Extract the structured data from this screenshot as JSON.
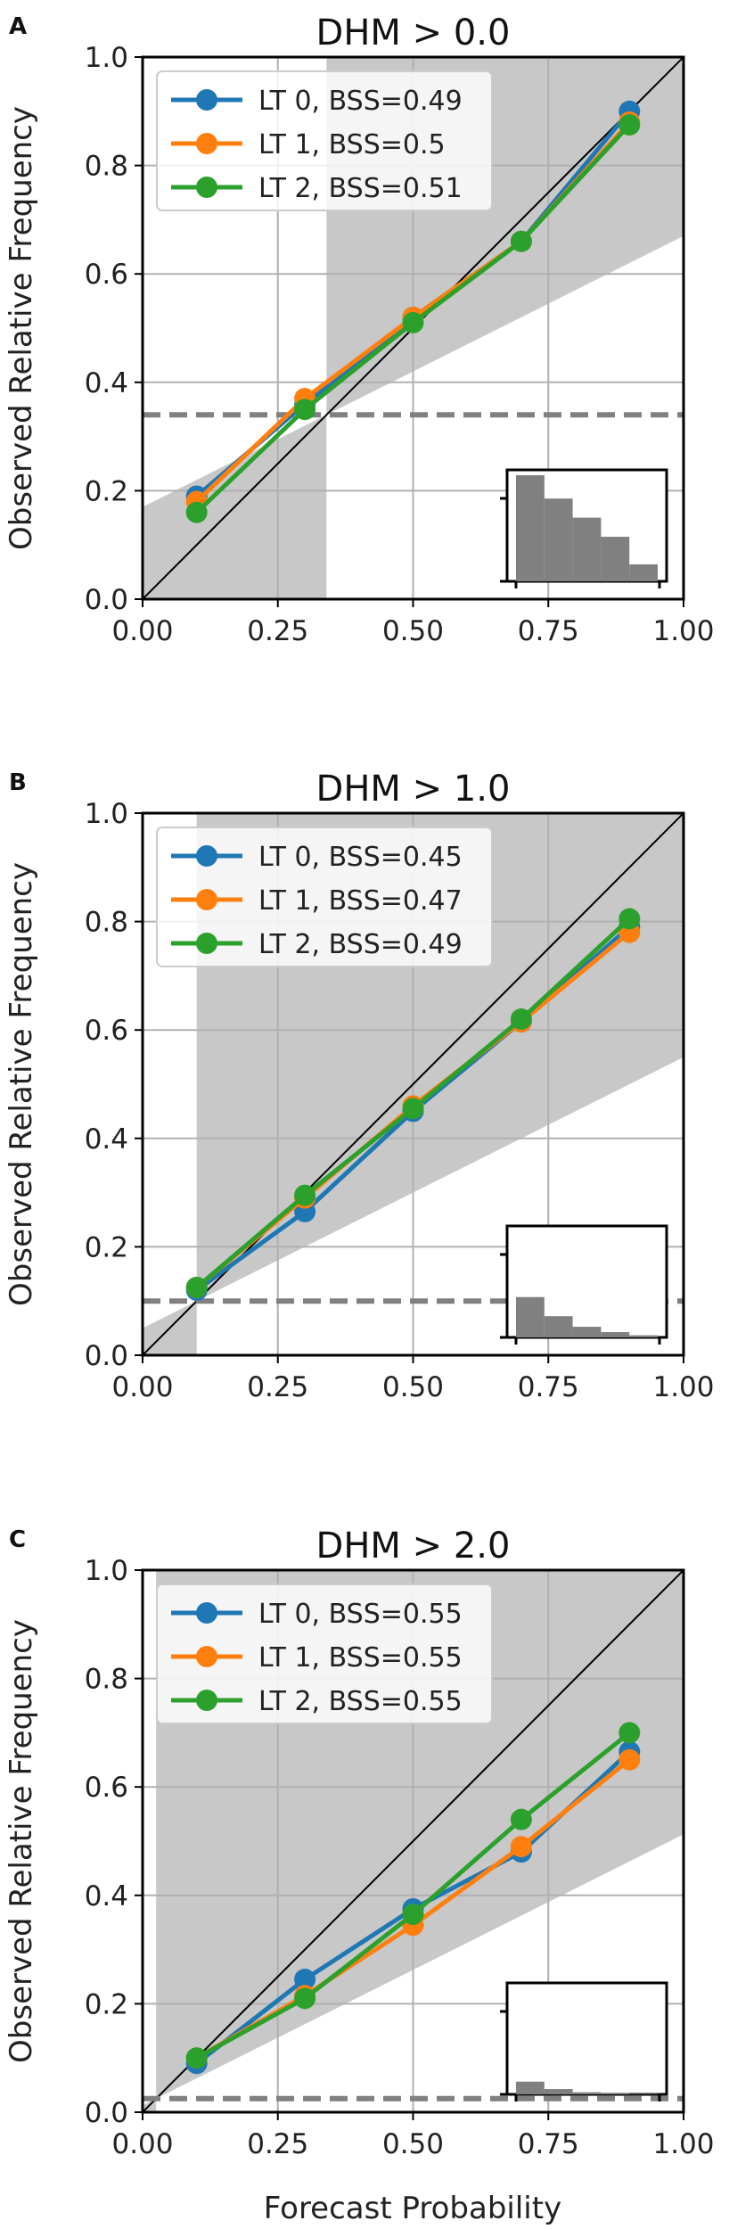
{
  "figure": {
    "xlabel": "Forecast Probability",
    "ylabel": "Observed Relative Frequency"
  },
  "chart_data": [
    {
      "type": "line",
      "panel_label": "A",
      "title": "DHM > 0.0",
      "xlabel": "",
      "ylabel": "Observed Relative Frequency",
      "xlim": [
        0,
        1
      ],
      "ylim": [
        0,
        1
      ],
      "xticks": [
        "0.00",
        "0.25",
        "0.50",
        "0.75",
        "1.00"
      ],
      "yticks": [
        "0.0",
        "0.2",
        "0.4",
        "0.6",
        "0.8",
        "1.0"
      ],
      "grid": true,
      "legend_position": "top-left",
      "climatology": 0.34,
      "x": [
        0.1,
        0.3,
        0.5,
        0.7,
        0.9
      ],
      "series": [
        {
          "name": "LT 0, BSS=0.49",
          "color": "#1f77b4",
          "values": [
            0.19,
            0.36,
            0.52,
            0.66,
            0.9
          ]
        },
        {
          "name": "LT 1, BSS=0.5",
          "color": "#ff7f0e",
          "values": [
            0.18,
            0.37,
            0.52,
            0.66,
            0.88
          ]
        },
        {
          "name": "LT 2, BSS=0.51",
          "color": "#2ca02c",
          "values": [
            0.16,
            0.35,
            0.51,
            0.66,
            0.875
          ]
        }
      ],
      "histogram": [
        1.0,
        0.78,
        0.6,
        0.42,
        0.16
      ]
    },
    {
      "type": "line",
      "panel_label": "B",
      "title": "DHM > 1.0",
      "xlabel": "",
      "ylabel": "Observed Relative Frequency",
      "xlim": [
        0,
        1
      ],
      "ylim": [
        0,
        1
      ],
      "xticks": [
        "0.00",
        "0.25",
        "0.50",
        "0.75",
        "1.00"
      ],
      "yticks": [
        "0.0",
        "0.2",
        "0.4",
        "0.6",
        "0.8",
        "1.0"
      ],
      "grid": true,
      "legend_position": "top-left",
      "climatology": 0.1,
      "x": [
        0.1,
        0.3,
        0.5,
        0.7,
        0.9
      ],
      "series": [
        {
          "name": "LT 0, BSS=0.45",
          "color": "#1f77b4",
          "values": [
            0.12,
            0.265,
            0.45,
            0.615,
            0.79
          ]
        },
        {
          "name": "LT 1, BSS=0.47",
          "color": "#ff7f0e",
          "values": [
            0.125,
            0.29,
            0.46,
            0.615,
            0.78
          ]
        },
        {
          "name": "LT 2, BSS=0.49",
          "color": "#2ca02c",
          "values": [
            0.125,
            0.295,
            0.455,
            0.62,
            0.805
          ]
        }
      ],
      "histogram": [
        0.38,
        0.2,
        0.1,
        0.05,
        0.02
      ]
    },
    {
      "type": "line",
      "panel_label": "C",
      "title": "DHM > 2.0",
      "xlabel": "Forecast Probability",
      "ylabel": "Observed Relative Frequency",
      "xlim": [
        0,
        1
      ],
      "ylim": [
        0,
        1
      ],
      "xticks": [
        "0.00",
        "0.25",
        "0.50",
        "0.75",
        "1.00"
      ],
      "yticks": [
        "0.0",
        "0.2",
        "0.4",
        "0.6",
        "0.8",
        "1.0"
      ],
      "grid": true,
      "legend_position": "top-left",
      "climatology": 0.025,
      "x": [
        0.1,
        0.3,
        0.5,
        0.7,
        0.9
      ],
      "series": [
        {
          "name": "LT 0, BSS=0.55",
          "color": "#1f77b4",
          "values": [
            0.09,
            0.245,
            0.375,
            0.48,
            0.665
          ]
        },
        {
          "name": "LT 1, BSS=0.55",
          "color": "#ff7f0e",
          "values": [
            0.1,
            0.215,
            0.345,
            0.49,
            0.65
          ]
        },
        {
          "name": "LT 2, BSS=0.55",
          "color": "#2ca02c",
          "values": [
            0.1,
            0.21,
            0.365,
            0.54,
            0.7
          ]
        }
      ],
      "histogram": [
        0.12,
        0.05,
        0.02,
        0.01,
        0.005
      ]
    }
  ]
}
